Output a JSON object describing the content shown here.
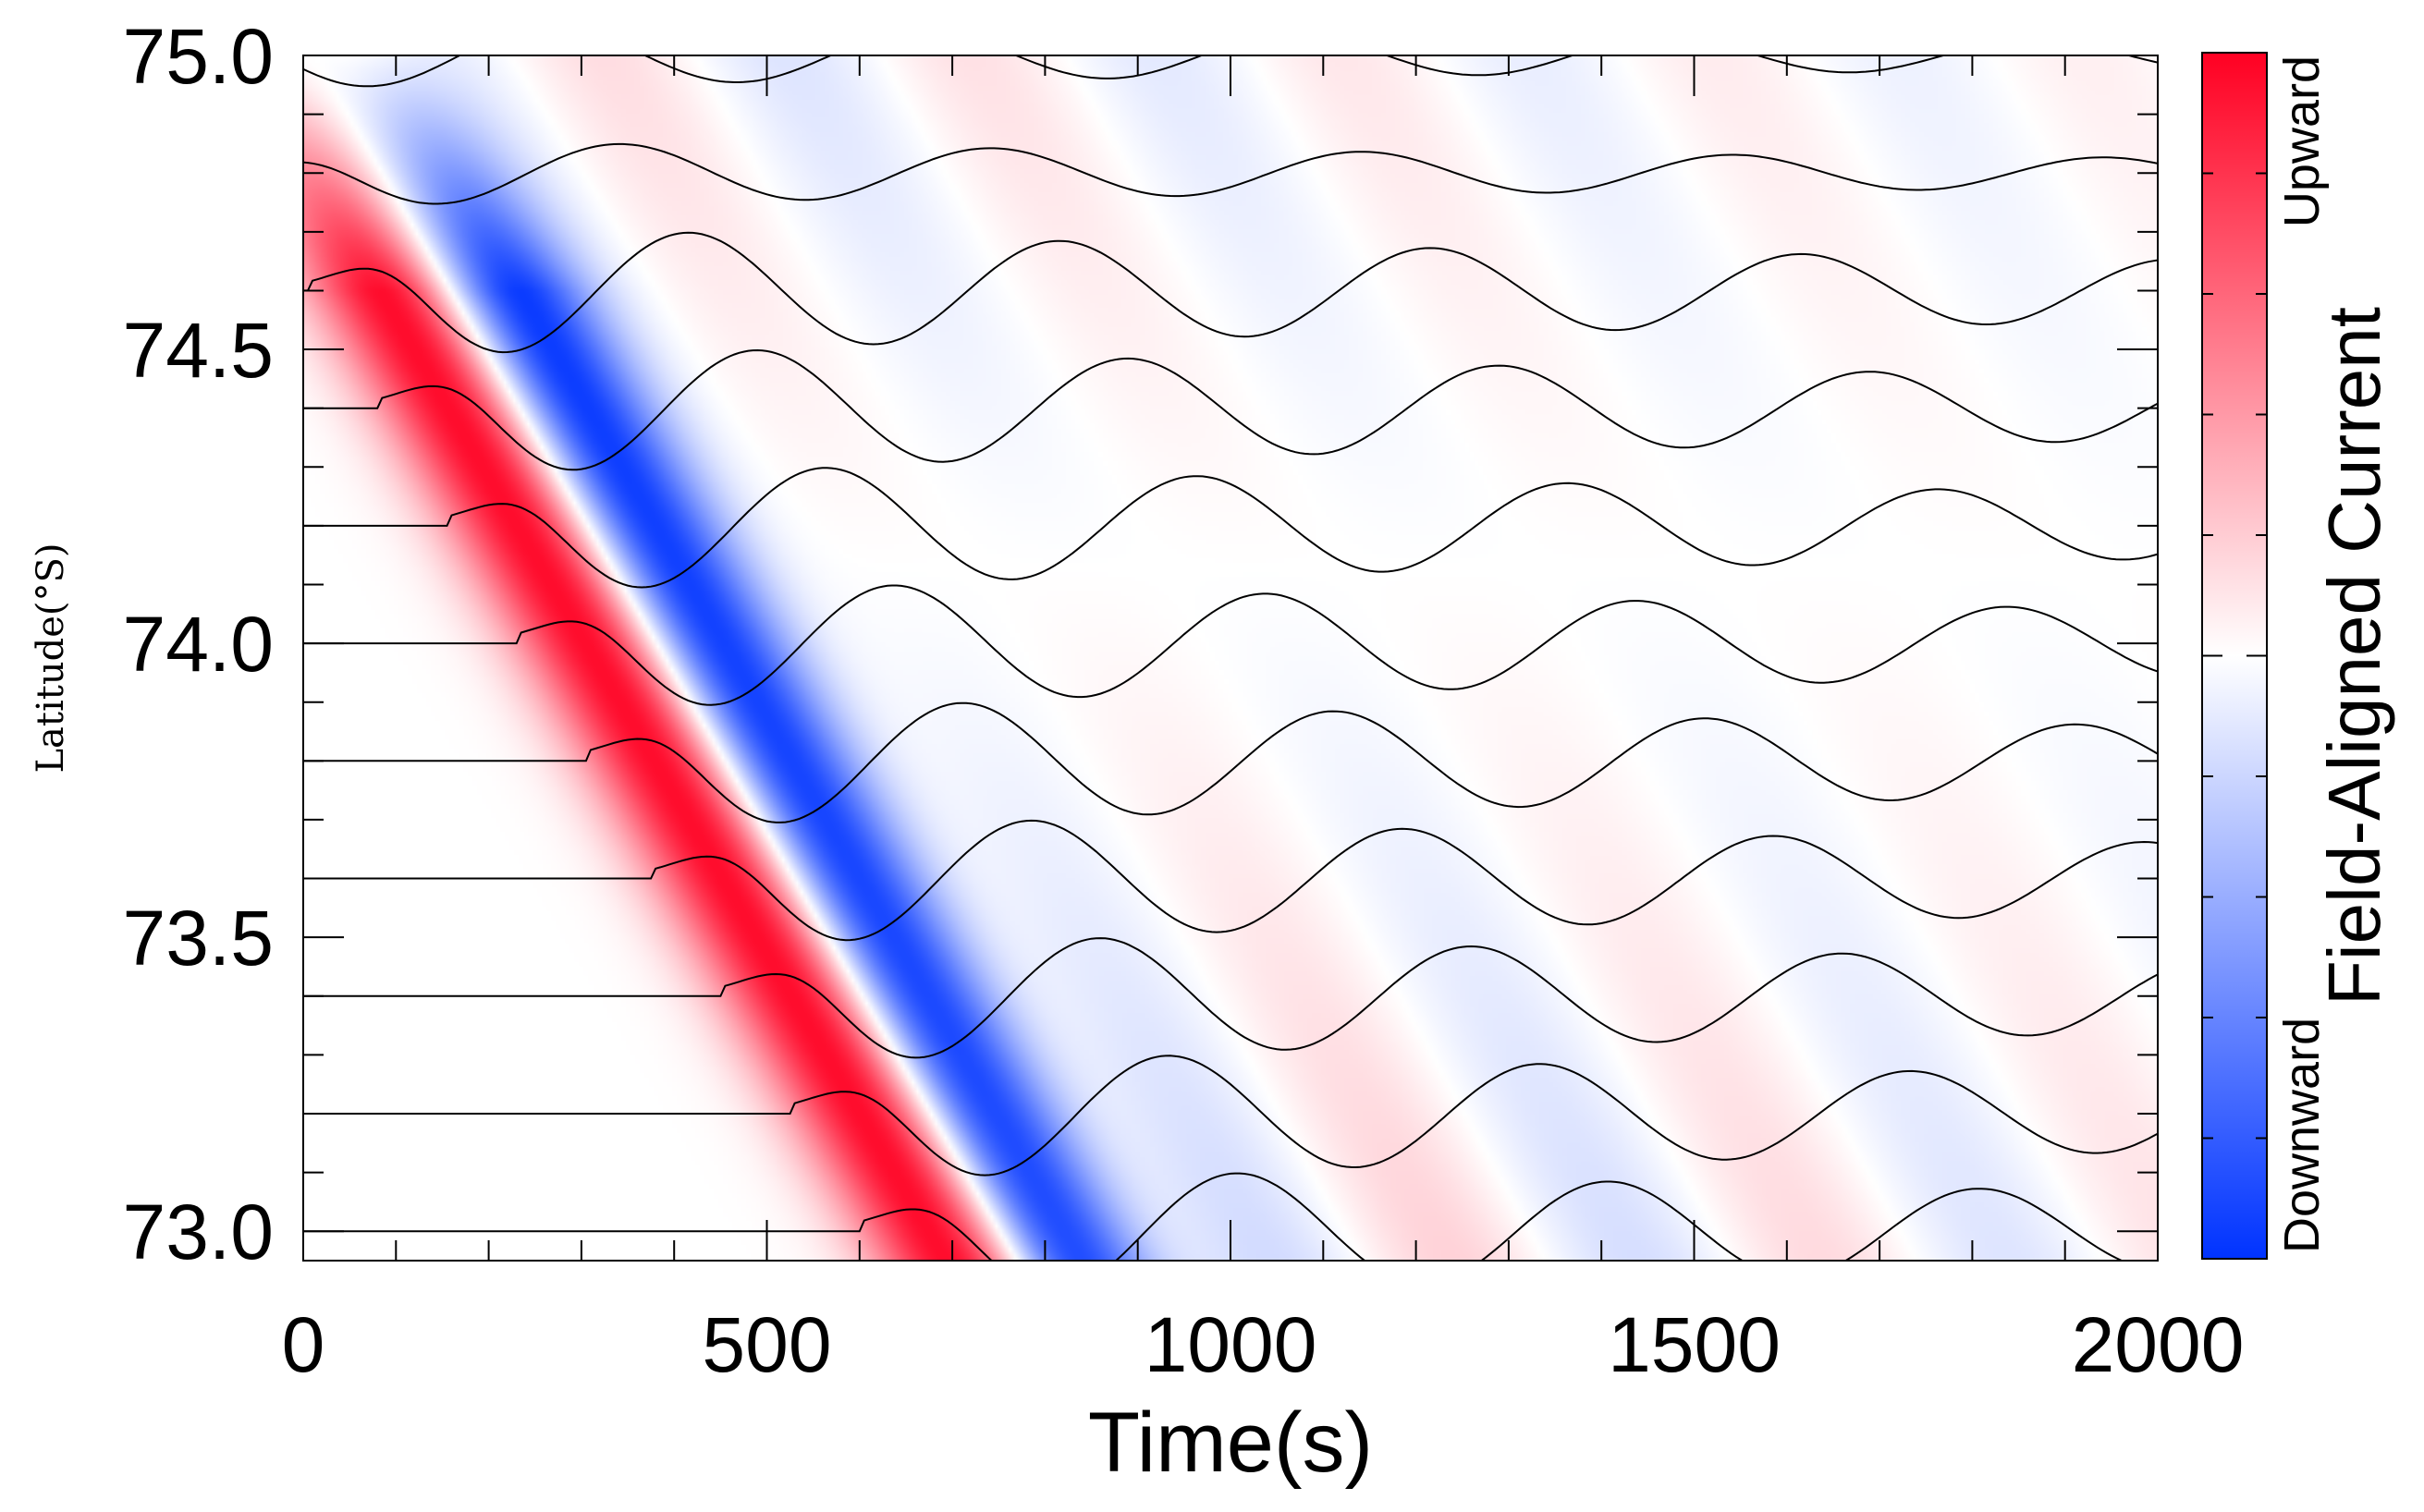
{
  "chart_data": {
    "type": "heatmap",
    "title": "",
    "xlabel": "Time(s)",
    "ylabel": "Latitude(°S)",
    "xlim": [
      0,
      2000
    ],
    "ylim": [
      72.95,
      75.0
    ],
    "x_ticks": [
      0,
      500,
      1000,
      1500,
      2000
    ],
    "x_tick_labels": [
      "0",
      "500",
      "1000",
      "1500",
      "2000"
    ],
    "y_ticks": [
      73.0,
      73.5,
      74.0,
      74.5,
      75.0
    ],
    "y_tick_labels": [
      "73.0",
      "73.5",
      "74.0",
      "74.5",
      "75.0"
    ],
    "colorbar": {
      "label": "Field-Aligned Current",
      "top_label": "Upward",
      "bottom_label": "Downward",
      "colors": [
        "#0033ff",
        "#ffffff",
        "#ff0022"
      ]
    },
    "field_lines": {
      "baseline_latitudes": [
        73.0,
        73.2,
        73.4,
        73.6,
        73.8,
        74.0,
        74.2,
        74.4,
        74.6,
        74.8,
        75.0
      ],
      "line_color": "#000000"
    },
    "wave_model": {
      "pulse_slope_s_per_deg": 370,
      "pulse_start_time_s": 0,
      "pulse_start_latitude": 74.95,
      "oscillation_period_s": 400,
      "field_line_amplitude_deg": 0.2
    }
  }
}
